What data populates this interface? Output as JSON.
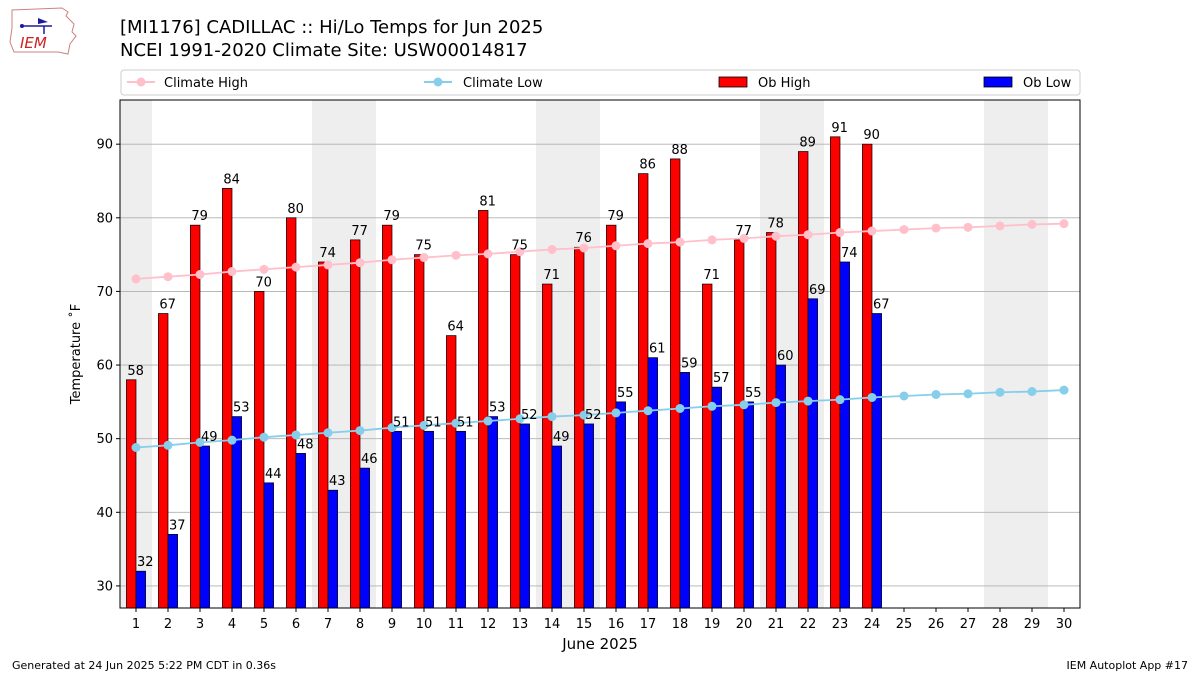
{
  "header": {
    "title_line1": "[MI1176] CADILLAC :: Hi/Lo Temps for Jun 2025",
    "title_line2": "NCEI 1991-2020 Climate Site: USW00014817",
    "logo_text": "IEM"
  },
  "footer": {
    "left": "Generated at 24 Jun 2025 5:22 PM CDT in 0.36s",
    "right": "IEM Autoplot App #17"
  },
  "colors": {
    "ob_high": "#ff0000",
    "ob_low": "#0000ff",
    "climate_high": "#ffc0cb",
    "climate_low": "#87ceeb",
    "weekend_shade": "#eeeeee"
  },
  "chart_data": {
    "type": "bar",
    "xlabel": "June 2025",
    "ylabel": "Temperature ˚F",
    "ylim": [
      27,
      96
    ],
    "yticks": [
      30,
      40,
      50,
      60,
      70,
      80,
      90
    ],
    "grid": true,
    "legend_position": "top",
    "categories": [
      1,
      2,
      3,
      4,
      5,
      6,
      7,
      8,
      9,
      10,
      11,
      12,
      13,
      14,
      15,
      16,
      17,
      18,
      19,
      20,
      21,
      22,
      23,
      24,
      25,
      26,
      27,
      28,
      29,
      30
    ],
    "shaded_days": [
      1,
      7,
      8,
      14,
      15,
      21,
      22,
      28,
      29
    ],
    "series": [
      {
        "name": "Ob High",
        "kind": "bar",
        "values": [
          58,
          67,
          79,
          84,
          70,
          80,
          74,
          77,
          79,
          75,
          64,
          81,
          75,
          71,
          76,
          79,
          86,
          88,
          71,
          77,
          78,
          89,
          91,
          90,
          null,
          null,
          null,
          null,
          null,
          null
        ]
      },
      {
        "name": "Ob Low",
        "kind": "bar",
        "values": [
          32,
          37,
          49,
          53,
          44,
          48,
          43,
          46,
          51,
          51,
          51,
          53,
          52,
          49,
          52,
          55,
          61,
          59,
          57,
          55,
          60,
          69,
          74,
          67,
          null,
          null,
          null,
          null,
          null,
          null
        ]
      },
      {
        "name": "Climate High",
        "kind": "line",
        "values": [
          71.7,
          72.0,
          72.3,
          72.7,
          73.0,
          73.3,
          73.6,
          73.9,
          74.3,
          74.6,
          74.9,
          75.1,
          75.4,
          75.7,
          75.9,
          76.2,
          76.5,
          76.7,
          77.0,
          77.2,
          77.5,
          77.7,
          78.0,
          78.2,
          78.4,
          78.6,
          78.7,
          78.9,
          79.1,
          79.2
        ]
      },
      {
        "name": "Climate Low",
        "kind": "line",
        "values": [
          48.8,
          49.1,
          49.5,
          49.8,
          50.2,
          50.5,
          50.8,
          51.1,
          51.5,
          51.8,
          52.1,
          52.4,
          52.7,
          53.0,
          53.2,
          53.5,
          53.8,
          54.1,
          54.4,
          54.6,
          54.9,
          55.1,
          55.3,
          55.6,
          55.8,
          56.0,
          56.1,
          56.3,
          56.4,
          56.6
        ]
      }
    ]
  }
}
